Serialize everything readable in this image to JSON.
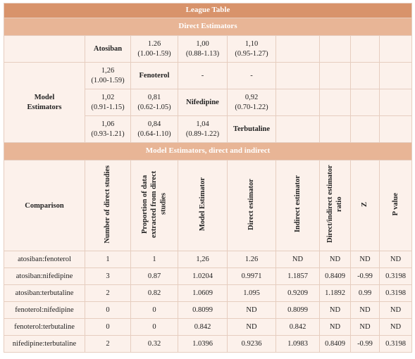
{
  "title": "League Table",
  "direct_section": "Direct Estimators",
  "model_label": "Model\nEstimators",
  "league": {
    "rows": [
      [
        "Atosiban",
        "1.26\n(1.00-1.59)",
        "1,00\n(0.88-1.13)",
        "1,10\n(0.95-1.27)"
      ],
      [
        "1,26\n(1.00-1.59)",
        "Fenoterol",
        "-",
        "-"
      ],
      [
        "1,02\n(0.91-1.15)",
        "0,81\n(0.62-1.05)",
        "Nifedipine",
        "0,92\n(0.70-1.22)"
      ],
      [
        "1,06\n(0.93-1.21)",
        "0,84\n(0.64-1.10)",
        "1,04\n(0.89-1.22)",
        "Terbutaline"
      ]
    ]
  },
  "section2": "Model Estimators, direct and indirect",
  "table": {
    "headers": [
      "Comparison",
      "Number of direct studies",
      "Proportion of data extracted from direct studies",
      "Model Estimator",
      "Direct estimator",
      "Indirect estimator",
      "Direct/indirect estimator ratio",
      "Z",
      "P value"
    ],
    "rows": [
      [
        "atosiban:fenoterol",
        "1",
        "1",
        "1,26",
        "1.26",
        "ND",
        "ND",
        "ND",
        "ND"
      ],
      [
        "atosiban:nifedipine",
        "3",
        "0.87",
        "1.0204",
        "0.9971",
        "1.1857",
        "0.8409",
        "-0.99",
        "0.3198"
      ],
      [
        "atosiban:terbutaline",
        "2",
        "0.82",
        "1.0609",
        "1.095",
        "0.9209",
        "1.1892",
        "0.99",
        "0.3198"
      ],
      [
        "fenoterol:nifedipine",
        "0",
        "0",
        "0.8099",
        "ND",
        "0.8099",
        "ND",
        "ND",
        "ND"
      ],
      [
        "fenoterol:terbutaline",
        "0",
        "0",
        "0.842",
        "ND",
        "0.842",
        "ND",
        "ND",
        "ND"
      ],
      [
        "nifedipine:terbutaline",
        "2",
        "0.32",
        "1.0396",
        "0.9236",
        "1.0983",
        "0.8409",
        "-0.99",
        "0.3198"
      ]
    ]
  }
}
